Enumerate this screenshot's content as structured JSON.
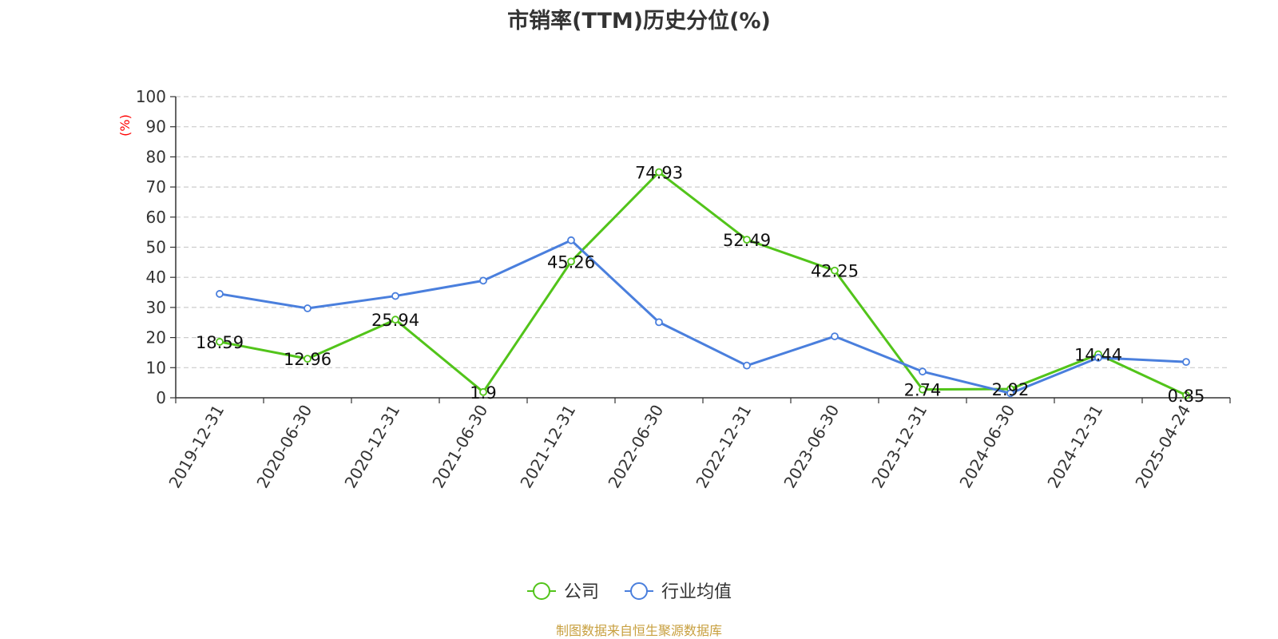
{
  "chart_data": {
    "type": "line",
    "title": "市销率(TTM)历史分位(%)",
    "ylabel": "(%)",
    "xlabel": "",
    "ylim": [
      0,
      100
    ],
    "yticks": [
      0,
      10,
      20,
      30,
      40,
      50,
      60,
      70,
      80,
      90,
      100
    ],
    "grid": true,
    "legend_position": "bottom",
    "categories": [
      "2019-12-31",
      "2020-06-30",
      "2020-12-31",
      "2021-06-30",
      "2021-12-31",
      "2022-06-30",
      "2022-12-31",
      "2023-06-30",
      "2023-12-31",
      "2024-06-30",
      "2024-12-31",
      "2025-04-24"
    ],
    "series": [
      {
        "name": "公司",
        "color": "#52c41a",
        "values": [
          18.59,
          12.96,
          25.94,
          1.9,
          45.26,
          74.93,
          52.49,
          42.25,
          2.74,
          2.92,
          14.44,
          0.85
        ],
        "labels": [
          "18.59",
          "12.96",
          "25.94",
          "1.9",
          "45.26",
          "74.93",
          "52.49",
          "42.25",
          "2.74",
          "2.92",
          "14.44",
          "0.85"
        ]
      },
      {
        "name": "行业均值",
        "color": "#4a7fdd",
        "values": [
          34.5,
          29.7,
          33.8,
          38.9,
          52.3,
          25.1,
          10.7,
          20.4,
          8.7,
          1.5,
          13.3,
          11.9
        ]
      }
    ],
    "source": "制图数据来自恒生聚源数据库"
  }
}
